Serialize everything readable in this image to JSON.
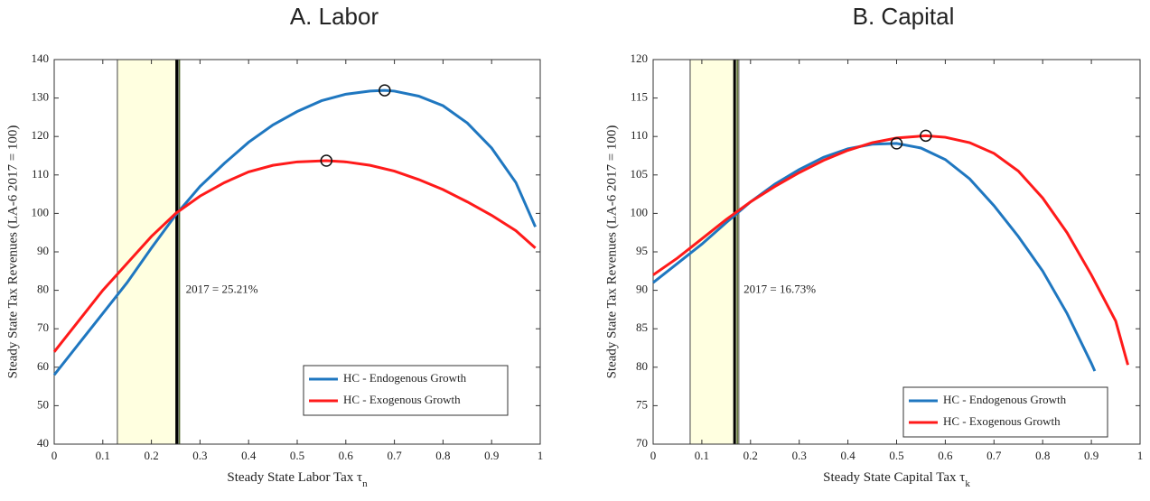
{
  "chart_data": [
    {
      "type": "line",
      "title": "A.   Labor",
      "xlabel": "Steady State Labor Tax τ",
      "xlabel_subscript": "n",
      "ylabel": "Steady State Tax Revenues (LA-6 2017 = 100)",
      "xlim": [
        0,
        1
      ],
      "xticks": [
        0,
        0.1,
        0.2,
        0.3,
        0.4,
        0.5,
        0.6,
        0.7,
        0.8,
        0.9,
        1
      ],
      "ylim": [
        40,
        140
      ],
      "yticks": [
        40,
        50,
        60,
        70,
        80,
        90,
        100,
        110,
        120,
        130,
        140
      ],
      "legend": "lower right",
      "shaded_region": {
        "x": [
          0.13,
          0.255
        ],
        "color": "#ffffe0"
      },
      "vline": {
        "x": 0.2521,
        "label": "2017 = 25.21%"
      },
      "series": [
        {
          "name": "HC - Endogenous Growth",
          "color": "#1f77c0",
          "x": [
            0,
            0.05,
            0.1,
            0.15,
            0.2,
            0.25,
            0.3,
            0.35,
            0.4,
            0.45,
            0.5,
            0.55,
            0.6,
            0.65,
            0.68,
            0.7,
            0.75,
            0.8,
            0.85,
            0.9,
            0.95,
            0.99
          ],
          "values": [
            58,
            66,
            74,
            82,
            91,
            99.6,
            107,
            113,
            118.5,
            123,
            126.5,
            129.3,
            131,
            131.8,
            132,
            131.8,
            130.5,
            128,
            123.5,
            117,
            108,
            96.5
          ],
          "max": {
            "x": 0.68,
            "y": 132
          }
        },
        {
          "name": "HC - Exogenous Growth",
          "color": "#ff1a1a",
          "x": [
            0,
            0.05,
            0.1,
            0.15,
            0.2,
            0.25,
            0.3,
            0.35,
            0.4,
            0.45,
            0.5,
            0.56,
            0.6,
            0.65,
            0.7,
            0.75,
            0.8,
            0.85,
            0.9,
            0.95,
            0.99
          ],
          "values": [
            64,
            72,
            80,
            87,
            94,
            100,
            104.5,
            108,
            110.8,
            112.5,
            113.4,
            113.7,
            113.4,
            112.5,
            111,
            108.8,
            106.2,
            103,
            99.5,
            95.5,
            91
          ],
          "max": {
            "x": 0.56,
            "y": 113.7
          }
        }
      ]
    },
    {
      "type": "line",
      "title": "B. Capital",
      "xlabel": "Steady State Capital Tax τ",
      "xlabel_subscript": "k",
      "ylabel": "Steady State Tax Revenues (LA-6 2017 = 100)",
      "xlim": [
        0,
        1
      ],
      "xticks": [
        0,
        0.1,
        0.2,
        0.3,
        0.4,
        0.5,
        0.6,
        0.7,
        0.8,
        0.9,
        1
      ],
      "ylim": [
        70,
        120
      ],
      "yticks": [
        70,
        75,
        80,
        85,
        90,
        95,
        100,
        105,
        110,
        115,
        120
      ],
      "legend": "lower right",
      "shaded_region": {
        "x": [
          0.076,
          0.176
        ],
        "color": "#ffffe0"
      },
      "vline": {
        "x": 0.1673,
        "label": "2017 = 16.73%"
      },
      "series": [
        {
          "name": "HC - Endogenous Growth",
          "color": "#1f77c0",
          "x": [
            0,
            0.05,
            0.1,
            0.15,
            0.2,
            0.25,
            0.3,
            0.35,
            0.4,
            0.45,
            0.5,
            0.55,
            0.6,
            0.65,
            0.7,
            0.75,
            0.8,
            0.85,
            0.9,
            0.907
          ],
          "values": [
            91,
            93.5,
            96,
            98.8,
            101.5,
            103.8,
            105.7,
            107.3,
            108.4,
            109,
            109.1,
            108.5,
            107,
            104.5,
            101,
            97,
            92.5,
            87,
            80.5,
            79.5
          ],
          "max": {
            "x": 0.5,
            "y": 109.1
          }
        },
        {
          "name": "HC - Exogenous Growth",
          "color": "#ff1a1a",
          "x": [
            0,
            0.05,
            0.1,
            0.15,
            0.2,
            0.25,
            0.3,
            0.35,
            0.4,
            0.45,
            0.5,
            0.56,
            0.6,
            0.65,
            0.7,
            0.75,
            0.8,
            0.85,
            0.9,
            0.95,
            0.975
          ],
          "values": [
            92,
            94.2,
            96.7,
            99.2,
            101.5,
            103.5,
            105.3,
            106.9,
            108.2,
            109.2,
            109.8,
            110.1,
            109.9,
            109.2,
            107.8,
            105.5,
            102,
            97.5,
            92,
            86,
            80.3
          ],
          "max": {
            "x": 0.56,
            "y": 110.1
          }
        }
      ]
    }
  ]
}
